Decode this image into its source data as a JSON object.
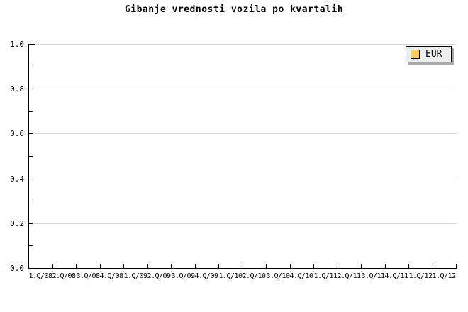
{
  "chart": {
    "title": "Gibanje vrednosti vozila po kvartalih"
  },
  "legend": {
    "position": "top-right",
    "items": [
      {
        "label": "EUR",
        "swatch_color": "#fcc966"
      }
    ]
  },
  "chart_data": {
    "type": "line",
    "title": "Gibanje vrednosti vozila po kvartalih",
    "categories": [
      "1.Q/08",
      "2.Q/08",
      "3.Q/08",
      "4.Q/08",
      "1.Q/09",
      "2.Q/09",
      "3.Q/09",
      "4.Q/09",
      "1.Q/10",
      "2.Q/10",
      "3.Q/10",
      "4.Q/10",
      "1.Q/11",
      "2.Q/11",
      "3.Q/11",
      "4.Q/11",
      "1.Q/12",
      "1.Q/12"
    ],
    "series": [
      {
        "name": "EUR",
        "color": "#fcc966",
        "values": []
      }
    ],
    "xlabel": "",
    "ylabel": "",
    "ylim": [
      0,
      1
    ],
    "ytick_step": 0.2,
    "minor_ytick_step": 0.1,
    "ytick_labels": [
      "0.0",
      "0.2",
      "0.4",
      "0.6",
      "0.8",
      "1.0"
    ],
    "grid": "horizontal-major",
    "legend_position": "top-right"
  },
  "colors": {
    "background": "#ffffff",
    "axis": "#000000",
    "gridline": "#d8d8d8",
    "text": "#000000",
    "legend_bg": "#eeeeee",
    "legend_border": "#000000",
    "legend_shadow": "#a9a9a9",
    "swatch_border": "#000000"
  }
}
